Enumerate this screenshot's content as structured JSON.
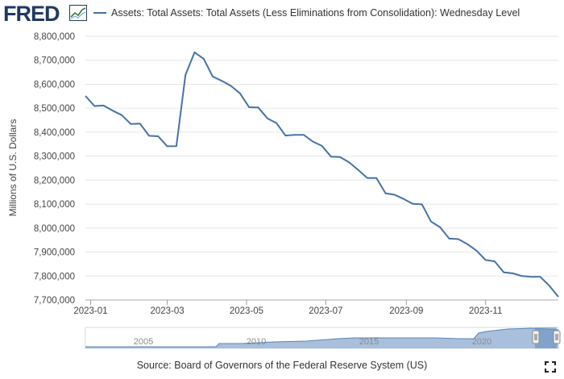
{
  "header": {
    "logo_text": "FRED",
    "logo_icon": "chart-line-icon",
    "legend_label": "Assets: Total Assets: Total Assets (Less Eliminations from Consolidation): Wednesday Level",
    "legend_color": "#4572a7"
  },
  "chart_data": {
    "type": "line",
    "title": "",
    "xlabel": "",
    "ylabel": "Millions of U.S. Dollars",
    "ylim": [
      7700000,
      8800000
    ],
    "xlim": [
      "2022-12-28",
      "2023-12-27"
    ],
    "grid": true,
    "legend_position": "top",
    "y_ticks": [
      "7,700,000",
      "7,800,000",
      "7,900,000",
      "8,000,000",
      "8,100,000",
      "8,200,000",
      "8,300,000",
      "8,400,000",
      "8,500,000",
      "8,600,000",
      "8,700,000",
      "8,800,000"
    ],
    "x_ticks": [
      "2023-01",
      "2023-03",
      "2023-05",
      "2023-07",
      "2023-09",
      "2023-11"
    ],
    "series": [
      {
        "name": "Assets: Total Assets: Total Assets (Less Eliminations from Consolidation): Wednesday Level",
        "color": "#4572a7",
        "x": [
          "2022-12-28",
          "2023-01-04",
          "2023-01-11",
          "2023-01-18",
          "2023-01-25",
          "2023-02-01",
          "2023-02-08",
          "2023-02-15",
          "2023-02-22",
          "2023-03-01",
          "2023-03-08",
          "2023-03-15",
          "2023-03-22",
          "2023-03-29",
          "2023-04-05",
          "2023-04-12",
          "2023-04-19",
          "2023-04-26",
          "2023-05-03",
          "2023-05-10",
          "2023-05-17",
          "2023-05-24",
          "2023-05-31",
          "2023-06-07",
          "2023-06-14",
          "2023-06-21",
          "2023-06-28",
          "2023-07-05",
          "2023-07-12",
          "2023-07-19",
          "2023-07-26",
          "2023-08-02",
          "2023-08-09",
          "2023-08-16",
          "2023-08-23",
          "2023-08-30",
          "2023-09-06",
          "2023-09-13",
          "2023-09-20",
          "2023-09-27",
          "2023-10-04",
          "2023-10-11",
          "2023-10-18",
          "2023-10-25",
          "2023-11-01",
          "2023-11-08",
          "2023-11-15",
          "2023-11-22",
          "2023-11-29",
          "2023-12-06",
          "2023-12-13",
          "2023-12-20",
          "2023-12-27"
        ],
        "values": [
          8551000,
          8509000,
          8511000,
          8490000,
          8471000,
          8434000,
          8436000,
          8385000,
          8383000,
          8341000,
          8342000,
          8639000,
          8733000,
          8706000,
          8632000,
          8614000,
          8593000,
          8562000,
          8504000,
          8503000,
          8458000,
          8438000,
          8386000,
          8389000,
          8389000,
          8361000,
          8343000,
          8298000,
          8296000,
          8274000,
          8242000,
          8209000,
          8209000,
          8145000,
          8139000,
          8121000,
          8101000,
          8099000,
          8027000,
          8003000,
          7956000,
          7954000,
          7933000,
          7906000,
          7867000,
          7861000,
          7815000,
          7811000,
          7800000,
          7797000,
          7797000,
          7760000,
          7713000
        ]
      }
    ]
  },
  "navigator": {
    "labels": [
      "2005",
      "2010",
      "2015",
      "2020"
    ]
  },
  "footer": {
    "source": "Source: Board of Governors of the Federal Reserve System (US)",
    "fullscreen_icon": "fullscreen-icon"
  }
}
